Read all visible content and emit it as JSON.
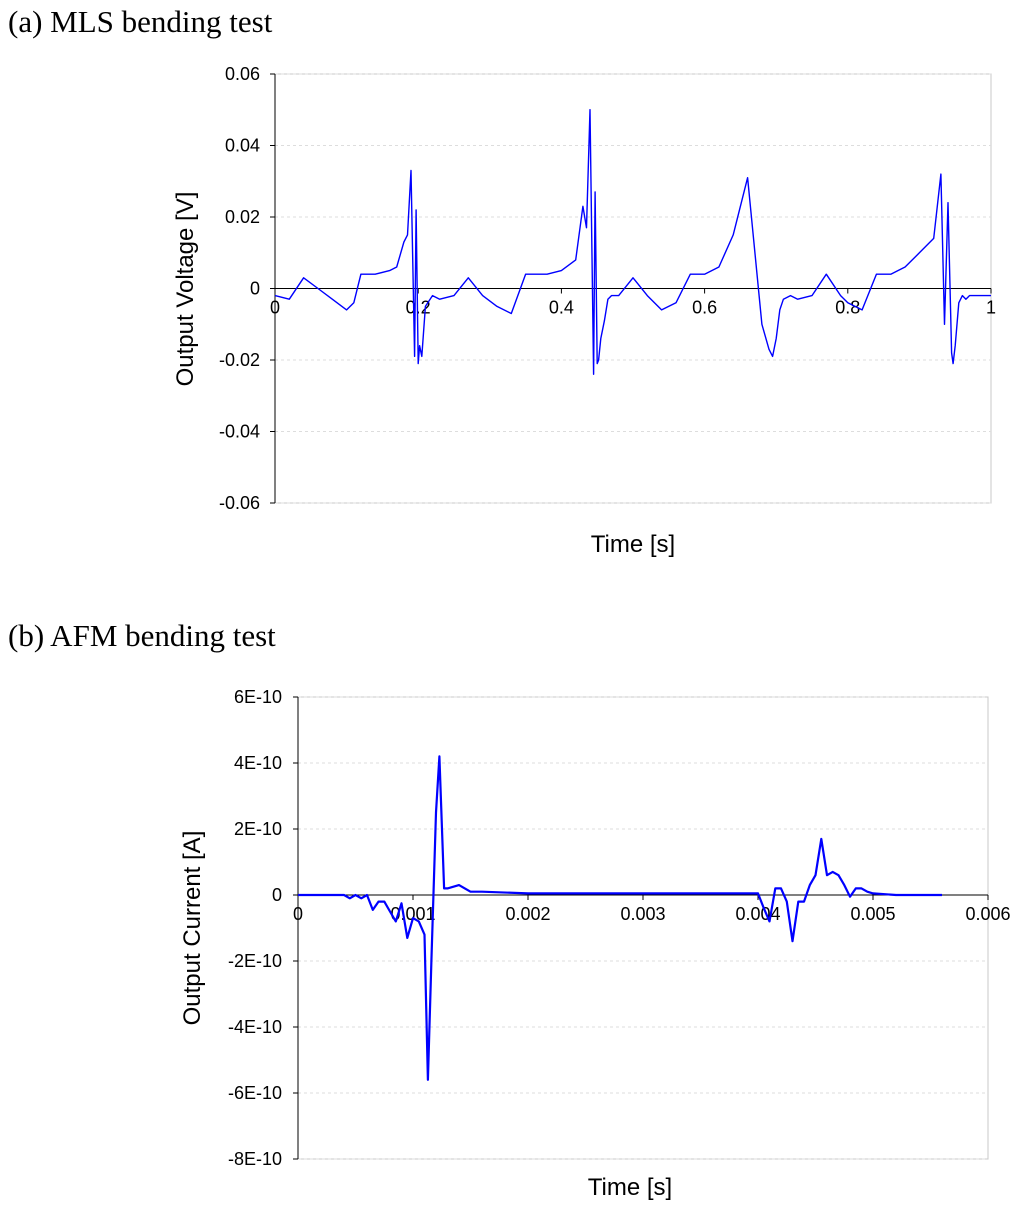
{
  "panels": {
    "a": {
      "label": "(a) MLS bending test"
    },
    "b": {
      "label": "(b) AFM bending test"
    }
  },
  "colors": {
    "series": "#0000ff",
    "grid": "#dddddd",
    "frame": "#c8c8c8",
    "axis": "#000000"
  },
  "chart_data": [
    {
      "type": "line",
      "title": "(a) MLS bending test",
      "xlabel": "Time [s]",
      "ylabel": "Output Voltage [V]",
      "xlim": [
        0,
        1
      ],
      "ylim": [
        -0.06,
        0.06
      ],
      "xticks": [
        0,
        0.2,
        0.4,
        0.6,
        0.8,
        1
      ],
      "xtick_labels": [
        "0",
        "0.2",
        "0.4",
        "0.6",
        "0.8",
        "1"
      ],
      "yticks": [
        0.06,
        0.04,
        0.02,
        0,
        -0.02,
        -0.04,
        -0.06
      ],
      "ytick_labels": [
        "0.06",
        "0.04",
        "0.02",
        "0",
        "-0.02",
        "-0.04",
        "-0.06"
      ],
      "grid": true,
      "series": [
        {
          "x": [
            0,
            0.02,
            0.04,
            0.06,
            0.08,
            0.1,
            0.11,
            0.12,
            0.14,
            0.16,
            0.17,
            0.18,
            0.185,
            0.19,
            0.195,
            0.197,
            0.2,
            0.202,
            0.205,
            0.21,
            0.22,
            0.23,
            0.25,
            0.27,
            0.29,
            0.31,
            0.33,
            0.35,
            0.37,
            0.38,
            0.4,
            0.42,
            0.43,
            0.435,
            0.44,
            0.445,
            0.447,
            0.45,
            0.452,
            0.455,
            0.46,
            0.465,
            0.47,
            0.48,
            0.5,
            0.52,
            0.54,
            0.56,
            0.58,
            0.6,
            0.62,
            0.64,
            0.66,
            0.68,
            0.69,
            0.695,
            0.7,
            0.705,
            0.71,
            0.72,
            0.73,
            0.75,
            0.77,
            0.79,
            0.8,
            0.82,
            0.84,
            0.86,
            0.87,
            0.88,
            0.9,
            0.92,
            0.93,
            0.935,
            0.94,
            0.945,
            0.947,
            0.95,
            0.955,
            0.96,
            0.965,
            0.97,
            0.98,
            1.0
          ],
          "y": [
            -0.002,
            -0.003,
            0.003,
            0.0,
            -0.003,
            -0.006,
            -0.004,
            0.004,
            0.004,
            0.005,
            0.006,
            0.013,
            0.015,
            0.033,
            -0.019,
            0.022,
            -0.021,
            -0.016,
            -0.019,
            -0.005,
            -0.002,
            -0.003,
            -0.002,
            0.003,
            -0.002,
            -0.005,
            -0.007,
            0.004,
            0.004,
            0.004,
            0.005,
            0.008,
            0.023,
            0.017,
            0.05,
            -0.024,
            0.027,
            -0.021,
            -0.02,
            -0.014,
            -0.009,
            -0.003,
            -0.002,
            -0.002,
            0.003,
            -0.002,
            -0.006,
            -0.004,
            0.004,
            0.004,
            0.006,
            0.015,
            0.031,
            -0.01,
            -0.017,
            -0.019,
            -0.014,
            -0.006,
            -0.003,
            -0.002,
            -0.003,
            -0.002,
            0.004,
            -0.002,
            -0.004,
            -0.006,
            0.004,
            0.004,
            0.005,
            0.006,
            0.01,
            0.014,
            0.032,
            -0.01,
            0.024,
            -0.018,
            -0.021,
            -0.016,
            -0.004,
            -0.002,
            -0.003,
            -0.002,
            -0.002,
            -0.002
          ]
        }
      ]
    },
    {
      "type": "line",
      "title": "(b) AFM bending test",
      "xlabel": "Time [s]",
      "ylabel": "Output Current [A]",
      "xlim": [
        0,
        0.006
      ],
      "ylim": [
        -8e-10,
        6e-10
      ],
      "xticks": [
        0,
        0.001,
        0.002,
        0.003,
        0.004,
        0.005,
        0.006
      ],
      "xtick_labels": [
        "0",
        "0.001",
        "0.002",
        "0.003",
        "0.004",
        "0.005",
        "0.006"
      ],
      "yticks": [
        6e-10,
        4e-10,
        2e-10,
        0,
        -2e-10,
        -4e-10,
        -6e-10,
        -8e-10
      ],
      "ytick_labels": [
        "6E-10",
        "4E-10",
        "2E-10",
        "0",
        "-2E-10",
        "-4E-10",
        "-6E-10",
        "-8E-10"
      ],
      "grid": true,
      "series": [
        {
          "x": [
            0,
            0.0004,
            0.00045,
            0.0005,
            0.00055,
            0.0006,
            0.00065,
            0.0007,
            0.00075,
            0.0008,
            0.00085,
            0.0009,
            0.00095,
            0.001,
            0.00105,
            0.0011,
            0.00113,
            0.00116,
            0.0012,
            0.00123,
            0.00127,
            0.0013,
            0.0014,
            0.0015,
            0.0016,
            0.002,
            0.003,
            0.0035,
            0.004,
            0.00405,
            0.0041,
            0.00415,
            0.0042,
            0.00425,
            0.0043,
            0.00435,
            0.0044,
            0.00445,
            0.0045,
            0.00455,
            0.0046,
            0.00465,
            0.0047,
            0.00475,
            0.0048,
            0.00485,
            0.0049,
            0.00495,
            0.005,
            0.0052,
            0.0056
          ],
          "y": [
            0,
            0,
            -1e-11,
            0,
            -1e-11,
            0,
            -4.5e-11,
            -2e-11,
            -2e-11,
            -5e-11,
            -8e-11,
            -2.5e-11,
            -1.3e-10,
            -7e-11,
            -8e-11,
            -1.2e-10,
            -5.6e-10,
            -2e-10,
            2.5e-10,
            4.2e-10,
            2e-11,
            2e-11,
            3e-11,
            1e-11,
            1e-11,
            5e-12,
            5e-12,
            5e-12,
            5e-12,
            -4e-11,
            -8e-11,
            2e-11,
            2e-11,
            -2e-11,
            -1.4e-10,
            -2e-11,
            -2e-11,
            3e-11,
            6e-11,
            1.7e-10,
            6e-11,
            7e-11,
            6e-11,
            3e-11,
            -5e-12,
            2e-11,
            2e-11,
            1e-11,
            5e-12,
            0,
            0
          ]
        }
      ]
    }
  ]
}
